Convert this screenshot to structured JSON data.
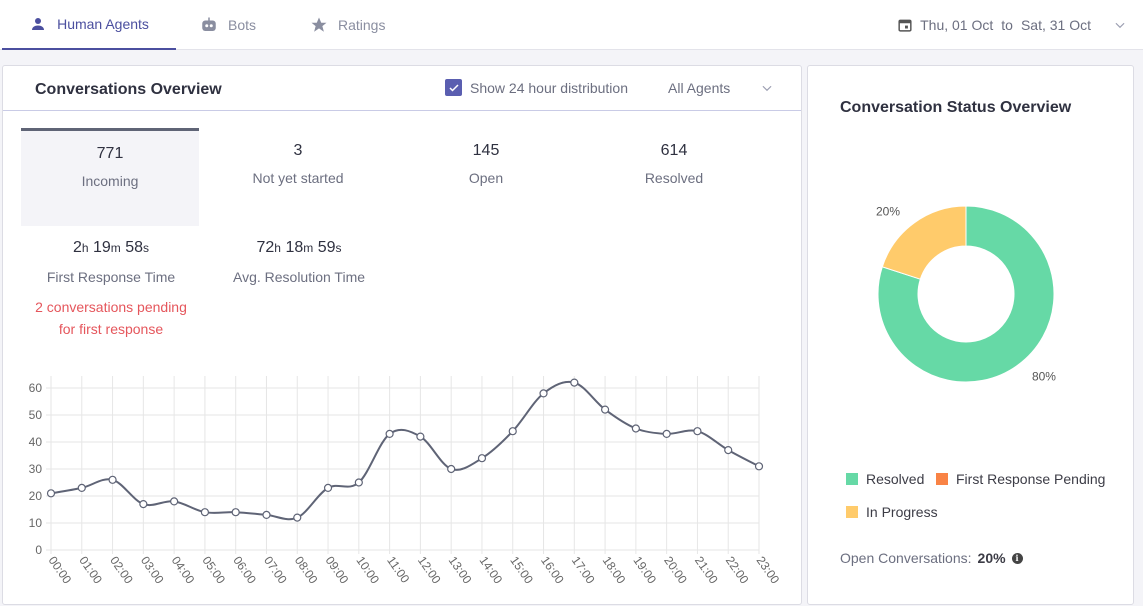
{
  "tabs": [
    {
      "label": "Human Agents",
      "icon": "person-icon",
      "active": true
    },
    {
      "label": "Bots",
      "icon": "robot-icon",
      "active": false
    },
    {
      "label": "Ratings",
      "icon": "star-icon",
      "active": false
    }
  ],
  "date_range": {
    "start": "Thu, 01 Oct",
    "separator": "to",
    "end": "Sat, 31 Oct"
  },
  "overview": {
    "title": "Conversations Overview",
    "distribution_label": "Show 24 hour distribution",
    "distribution_checked": true,
    "agent_filter": "All Agents",
    "metrics": [
      {
        "value": "771",
        "label": "Incoming"
      },
      {
        "value": "3",
        "label": "Not yet started"
      },
      {
        "value": "145",
        "label": "Open"
      },
      {
        "value": "614",
        "label": "Resolved"
      }
    ],
    "first_response": {
      "h": "2",
      "h_unit": "h",
      "m": "19",
      "m_unit": "m",
      "s": "58",
      "s_unit": "s",
      "label": "First Response Time"
    },
    "resolution": {
      "h": "72",
      "h_unit": "h",
      "m": "18",
      "m_unit": "m",
      "s": "59",
      "s_unit": "s",
      "label": "Avg. Resolution Time"
    },
    "pending_line1": "2 conversations pending",
    "pending_line2": "for first response"
  },
  "chart_data": [
    {
      "type": "line",
      "x": [
        "00:00",
        "01:00",
        "02:00",
        "03:00",
        "04:00",
        "05:00",
        "06:00",
        "07:00",
        "08:00",
        "09:00",
        "10:00",
        "11:00",
        "12:00",
        "13:00",
        "14:00",
        "15:00",
        "16:00",
        "17:00",
        "18:00",
        "19:00",
        "20:00",
        "21:00",
        "22:00",
        "23:00"
      ],
      "series": [
        {
          "values": [
            21,
            23,
            26,
            17,
            18,
            14,
            14,
            13,
            12,
            23,
            25,
            43,
            42,
            30,
            34,
            44,
            58,
            62,
            52,
            45,
            43,
            44,
            37,
            31
          ]
        }
      ],
      "ylim": [
        0,
        60
      ],
      "yticks": [
        0,
        10,
        20,
        30,
        40,
        50,
        60
      ],
      "color": "#5f6476",
      "grid": true
    },
    {
      "type": "pie",
      "title": "Conversation Status Overview",
      "slices": [
        {
          "name": "Resolved",
          "value": 80,
          "label": "80%",
          "color": "#66d9a6"
        },
        {
          "name": "First Response Pending",
          "value": 0,
          "label": "",
          "color": "#f98345"
        },
        {
          "name": "In Progress",
          "value": 20,
          "label": "20%",
          "color": "#ffcb6b"
        }
      ]
    }
  ],
  "status": {
    "title": "Conversation Status Overview",
    "legend": [
      {
        "label": "Resolved",
        "color": "#66d9a6"
      },
      {
        "label": "First Response Pending",
        "color": "#f98345"
      },
      {
        "label": "In Progress",
        "color": "#ffcb6b"
      }
    ],
    "open_label": "Open Conversations:",
    "open_value": "20%"
  }
}
